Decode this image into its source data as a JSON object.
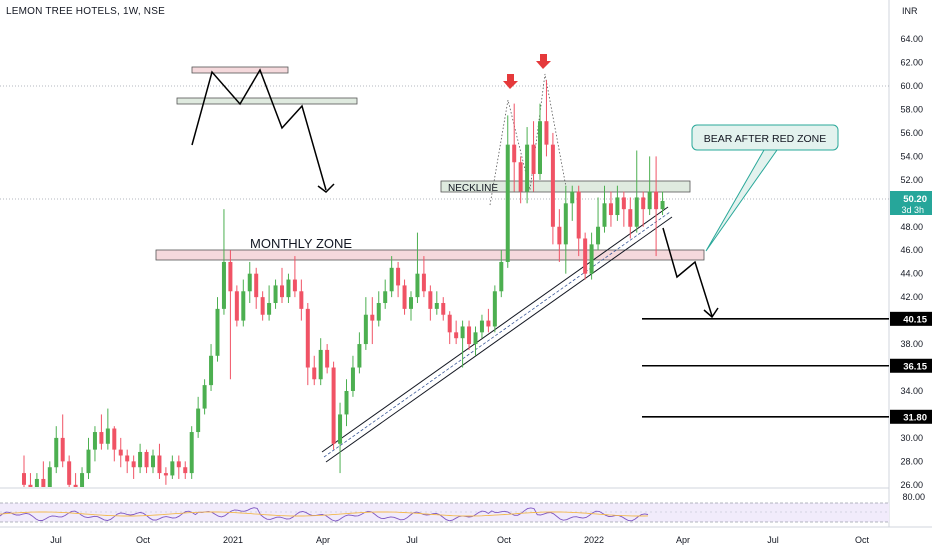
{
  "header": {
    "symbol": "LEMON TREE HOTELS, 1W, NSE",
    "currency": "INR"
  },
  "chart_data": {
    "type": "candlestick",
    "y_ticks": [
      "64.00",
      "62.00",
      "60.00",
      "58.00",
      "56.00",
      "54.00",
      "52.00",
      "50.00",
      "48.00",
      "46.00",
      "44.00",
      "42.00",
      "40.00",
      "38.00",
      "36.00",
      "34.00",
      "32.00",
      "30.00",
      "28.00",
      "26.00"
    ],
    "x_ticks": [
      "Jul",
      "Oct",
      "2021",
      "Apr",
      "Jul",
      "Oct",
      "2022",
      "Apr",
      "Jul",
      "Oct"
    ],
    "ylim": [
      25,
      65
    ],
    "last_price": {
      "value": "50.20",
      "countdown": "3d 3h",
      "color": "#26a69a"
    },
    "targets": [
      {
        "value": 40.15,
        "label": "40.15"
      },
      {
        "value": 36.15,
        "label": "36.15"
      },
      {
        "value": 31.8,
        "label": "31.80"
      }
    ],
    "rsi": {
      "level_label": "80.00",
      "upper": 80,
      "lower": 20
    },
    "annotations": {
      "monthly_zone": "MONTHLY ZONE",
      "neckline": "NECKLINE",
      "callout": "BEAR AFTER RED ZONE"
    },
    "colors": {
      "up": "#4caf50",
      "down": "#f05365",
      "zone": "#f5d9dc",
      "neckline_zone": "#dfeadf",
      "callout_bg": "#e3f2ee",
      "callout_border": "#2aa89a"
    },
    "candles": [
      [
        27.0,
        26.0,
        28.5,
        25.0
      ],
      [
        26.0,
        25.0,
        27.0,
        24.5
      ],
      [
        25.0,
        26.5,
        27.0,
        24.5
      ],
      [
        26.5,
        25.8,
        28.0,
        25.0
      ],
      [
        25.8,
        27.5,
        28.0,
        25.5
      ],
      [
        27.5,
        30.0,
        31.0,
        27.0
      ],
      [
        30.0,
        28.0,
        32.0,
        27.5
      ],
      [
        28.0,
        26.0,
        28.5,
        25.5
      ],
      [
        26.0,
        25.5,
        27.0,
        25.0
      ],
      [
        25.5,
        27.0,
        27.5,
        25.0
      ],
      [
        27.0,
        29.0,
        30.0,
        26.5
      ],
      [
        29.0,
        30.5,
        31.0,
        28.0
      ],
      [
        30.5,
        29.5,
        32.0,
        29.0
      ],
      [
        29.5,
        30.8,
        32.5,
        29.0
      ],
      [
        30.8,
        29.0,
        31.0,
        28.0
      ],
      [
        29.0,
        28.5,
        30.0,
        27.5
      ],
      [
        28.5,
        28.0,
        29.0,
        27.0
      ],
      [
        28.0,
        27.5,
        28.5,
        26.5
      ],
      [
        27.5,
        28.8,
        29.5,
        27.0
      ],
      [
        28.8,
        27.5,
        29.0,
        27.0
      ],
      [
        27.5,
        28.5,
        29.0,
        27.0
      ],
      [
        28.5,
        27.0,
        29.5,
        26.5
      ],
      [
        27.0,
        26.8,
        27.5,
        26.0
      ],
      [
        26.8,
        28.0,
        28.5,
        26.5
      ],
      [
        28.0,
        27.5,
        28.5,
        26.5
      ],
      [
        27.5,
        27.0,
        28.0,
        26.5
      ],
      [
        27.0,
        30.5,
        31.0,
        26.5
      ],
      [
        30.5,
        32.5,
        33.5,
        30.0
      ],
      [
        32.5,
        34.5,
        35.0,
        32.0
      ],
      [
        34.5,
        37.0,
        38.0,
        34.0
      ],
      [
        37.0,
        41.0,
        42.0,
        36.5
      ],
      [
        41.0,
        45.0,
        49.5,
        40.5
      ],
      [
        45.0,
        42.5,
        46.0,
        35.0
      ],
      [
        42.5,
        40.0,
        43.0,
        39.5
      ],
      [
        40.0,
        42.5,
        43.5,
        39.5
      ],
      [
        42.5,
        44.0,
        45.0,
        41.5
      ],
      [
        44.0,
        42.0,
        44.5,
        41.0
      ],
      [
        42.0,
        40.5,
        42.5,
        40.0
      ],
      [
        40.5,
        41.5,
        43.0,
        40.0
      ],
      [
        41.5,
        43.0,
        43.5,
        41.0
      ],
      [
        43.0,
        42.0,
        44.5,
        41.5
      ],
      [
        42.0,
        43.5,
        44.0,
        41.5
      ],
      [
        43.5,
        42.5,
        45.5,
        42.0
      ],
      [
        42.5,
        41.0,
        43.5,
        40.0
      ],
      [
        41.0,
        36.0,
        41.5,
        34.5
      ],
      [
        36.0,
        35.0,
        37.0,
        34.5
      ],
      [
        35.0,
        37.5,
        38.5,
        34.5
      ],
      [
        37.5,
        36.0,
        38.0,
        35.5
      ],
      [
        36.0,
        29.5,
        36.5,
        29.0
      ],
      [
        29.5,
        32.0,
        33.0,
        27.0
      ],
      [
        32.0,
        34.0,
        35.0,
        31.0
      ],
      [
        34.0,
        36.0,
        37.0,
        33.5
      ],
      [
        36.0,
        38.0,
        39.0,
        35.5
      ],
      [
        38.0,
        40.5,
        42.0,
        37.5
      ],
      [
        40.5,
        40.0,
        42.0,
        38.0
      ],
      [
        40.0,
        41.5,
        42.5,
        39.5
      ],
      [
        41.5,
        42.5,
        43.5,
        41.0
      ],
      [
        42.5,
        44.5,
        45.5,
        42.0
      ],
      [
        44.5,
        43.0,
        45.0,
        42.0
      ],
      [
        43.0,
        41.0,
        43.5,
        40.5
      ],
      [
        41.0,
        42.0,
        42.5,
        40.0
      ],
      [
        42.0,
        44.0,
        47.5,
        41.5
      ],
      [
        44.0,
        42.5,
        45.5,
        42.0
      ],
      [
        42.5,
        41.0,
        43.0,
        40.0
      ],
      [
        41.0,
        41.5,
        42.5,
        40.5
      ],
      [
        41.5,
        40.5,
        42.0,
        40.0
      ],
      [
        40.5,
        39.0,
        40.8,
        38.0
      ],
      [
        39.0,
        38.5,
        40.0,
        38.0
      ],
      [
        38.5,
        39.5,
        40.0,
        36.0
      ],
      [
        39.5,
        38.0,
        40.0,
        37.5
      ],
      [
        38.0,
        39.0,
        39.5,
        37.0
      ],
      [
        39.0,
        40.0,
        40.5,
        38.5
      ],
      [
        40.0,
        39.5,
        41.0,
        39.0
      ],
      [
        39.5,
        42.5,
        43.0,
        39.0
      ],
      [
        42.5,
        45.0,
        46.0,
        42.0
      ],
      [
        45.0,
        55.0,
        57.5,
        44.5
      ],
      [
        55.0,
        53.5,
        58.5,
        51.0
      ],
      [
        53.5,
        51.0,
        54.0,
        50.0
      ],
      [
        51.0,
        55.0,
        56.5,
        50.0
      ],
      [
        55.0,
        52.5,
        57.0,
        51.0
      ],
      [
        52.5,
        57.0,
        58.5,
        52.0
      ],
      [
        57.0,
        55.0,
        60.5,
        54.0
      ],
      [
        55.0,
        48.0,
        56.0,
        46.5
      ],
      [
        48.0,
        46.5,
        49.5,
        45.0
      ],
      [
        46.5,
        50.0,
        51.5,
        44.0
      ],
      [
        50.0,
        51.0,
        51.5,
        48.5
      ],
      [
        51.0,
        47.0,
        51.5,
        45.5
      ],
      [
        47.0,
        44.0,
        47.5,
        43.5
      ],
      [
        44.0,
        46.5,
        47.5,
        43.5
      ],
      [
        46.5,
        48.0,
        50.5,
        46.0
      ],
      [
        48.0,
        50.0,
        51.5,
        47.5
      ],
      [
        50.0,
        49.0,
        51.0,
        48.0
      ],
      [
        49.0,
        50.5,
        51.5,
        48.5
      ],
      [
        50.5,
        49.5,
        51.0,
        48.0
      ],
      [
        49.5,
        48.0,
        50.5,
        47.0
      ],
      [
        48.0,
        50.5,
        54.5,
        47.5
      ],
      [
        50.5,
        49.5,
        51.0,
        48.0
      ],
      [
        49.5,
        51.0,
        54.0,
        49.0
      ],
      [
        51.0,
        49.5,
        54.0,
        45.5
      ],
      [
        49.5,
        50.2,
        51.0,
        49.0
      ]
    ]
  }
}
